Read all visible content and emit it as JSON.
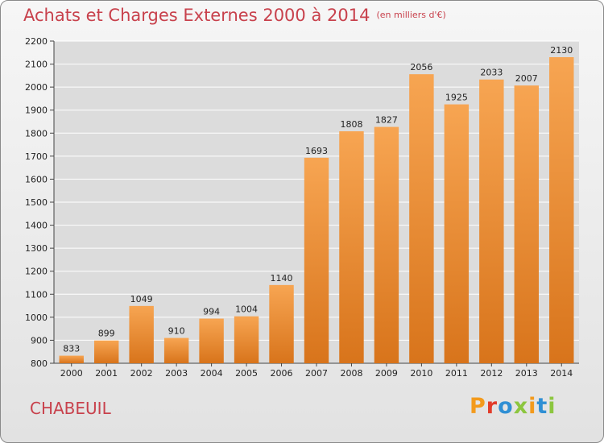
{
  "title": "Achats et Charges Externes 2000 à 2014",
  "subtitle": "(en milliers d'€)",
  "commune": "CHABEUIL",
  "logo_text": "Proxiti",
  "colors": {
    "bar_light": "#f7a552",
    "bar_dark": "#d8741b",
    "accent_text": "#c8414c",
    "grid": "#ffffff"
  },
  "chart_data": {
    "type": "bar",
    "title": "Achats et Charges Externes 2000 à 2014",
    "subtitle": "(en milliers d'€)",
    "xlabel": "",
    "ylabel": "",
    "categories": [
      "2000",
      "2001",
      "2002",
      "2003",
      "2004",
      "2005",
      "2006",
      "2007",
      "2008",
      "2009",
      "2010",
      "2011",
      "2012",
      "2013",
      "2014"
    ],
    "values": [
      833,
      899,
      1049,
      910,
      994,
      1004,
      1140,
      1693,
      1808,
      1827,
      2056,
      1925,
      2033,
      2007,
      2130
    ],
    "ylim": [
      800,
      2200
    ],
    "yticks": [
      800,
      900,
      1000,
      1100,
      1200,
      1300,
      1400,
      1500,
      1600,
      1700,
      1800,
      1900,
      2000,
      2100,
      2200
    ],
    "grid": true,
    "legend": "none"
  }
}
